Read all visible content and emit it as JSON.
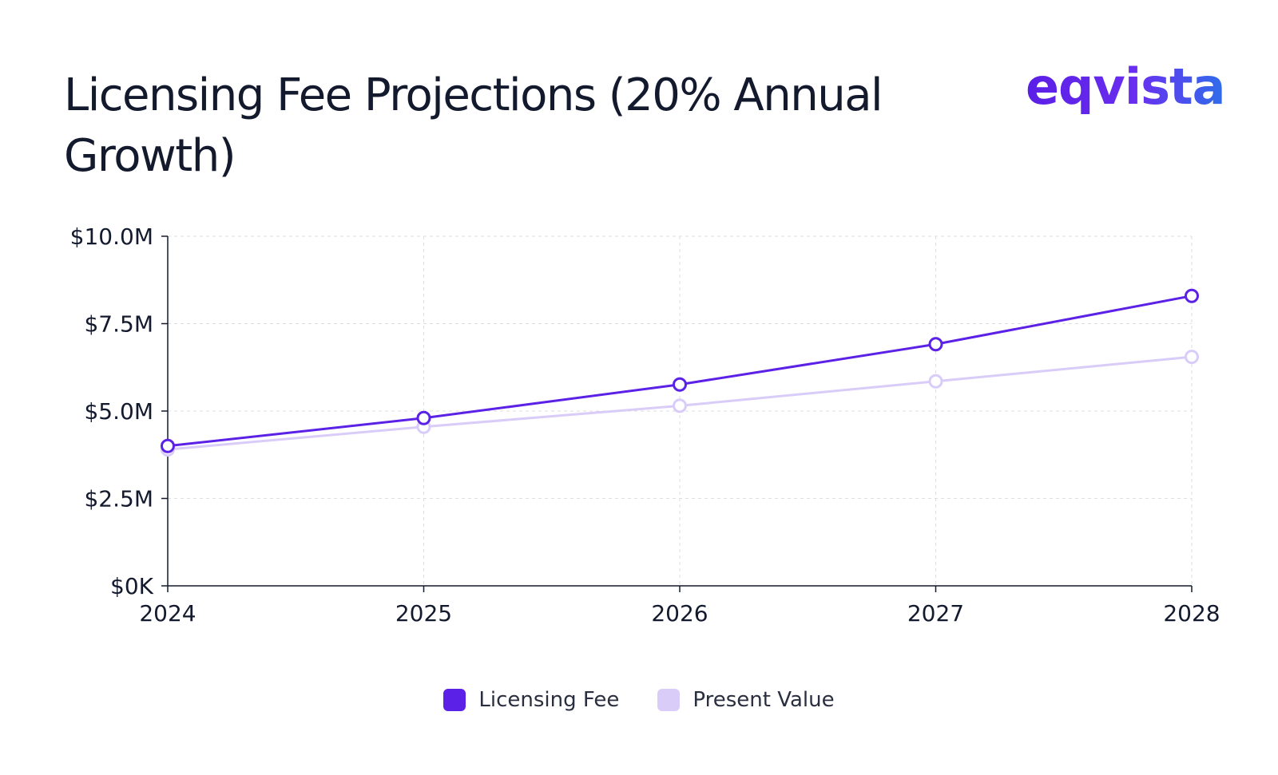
{
  "header": {
    "title": "Licensing Fee Projections (20% Annual Growth)",
    "logo_text": "eqvista"
  },
  "chart_data": {
    "type": "line",
    "title": "Licensing Fee Projections (20% Annual Growth)",
    "xlabel": "",
    "ylabel": "",
    "x": [
      "2024",
      "2025",
      "2026",
      "2027",
      "2028"
    ],
    "ylim": [
      0,
      10000000
    ],
    "y_ticks": [
      0,
      2500000,
      5000000,
      7500000,
      10000000
    ],
    "y_tick_labels": [
      "$0K",
      "$2.5M",
      "$5.0M",
      "$7.5M",
      "$10.0M"
    ],
    "grid": true,
    "legend_position": "bottom-center",
    "series": [
      {
        "name": "Licensing Fee",
        "color": "#5b21e6",
        "values": [
          4000000,
          4800000,
          5760000,
          6912000,
          8294400
        ]
      },
      {
        "name": "Present Value",
        "color": "#d9ccf9",
        "values": [
          3900000,
          4550000,
          5150000,
          5850000,
          6550000
        ]
      }
    ]
  }
}
